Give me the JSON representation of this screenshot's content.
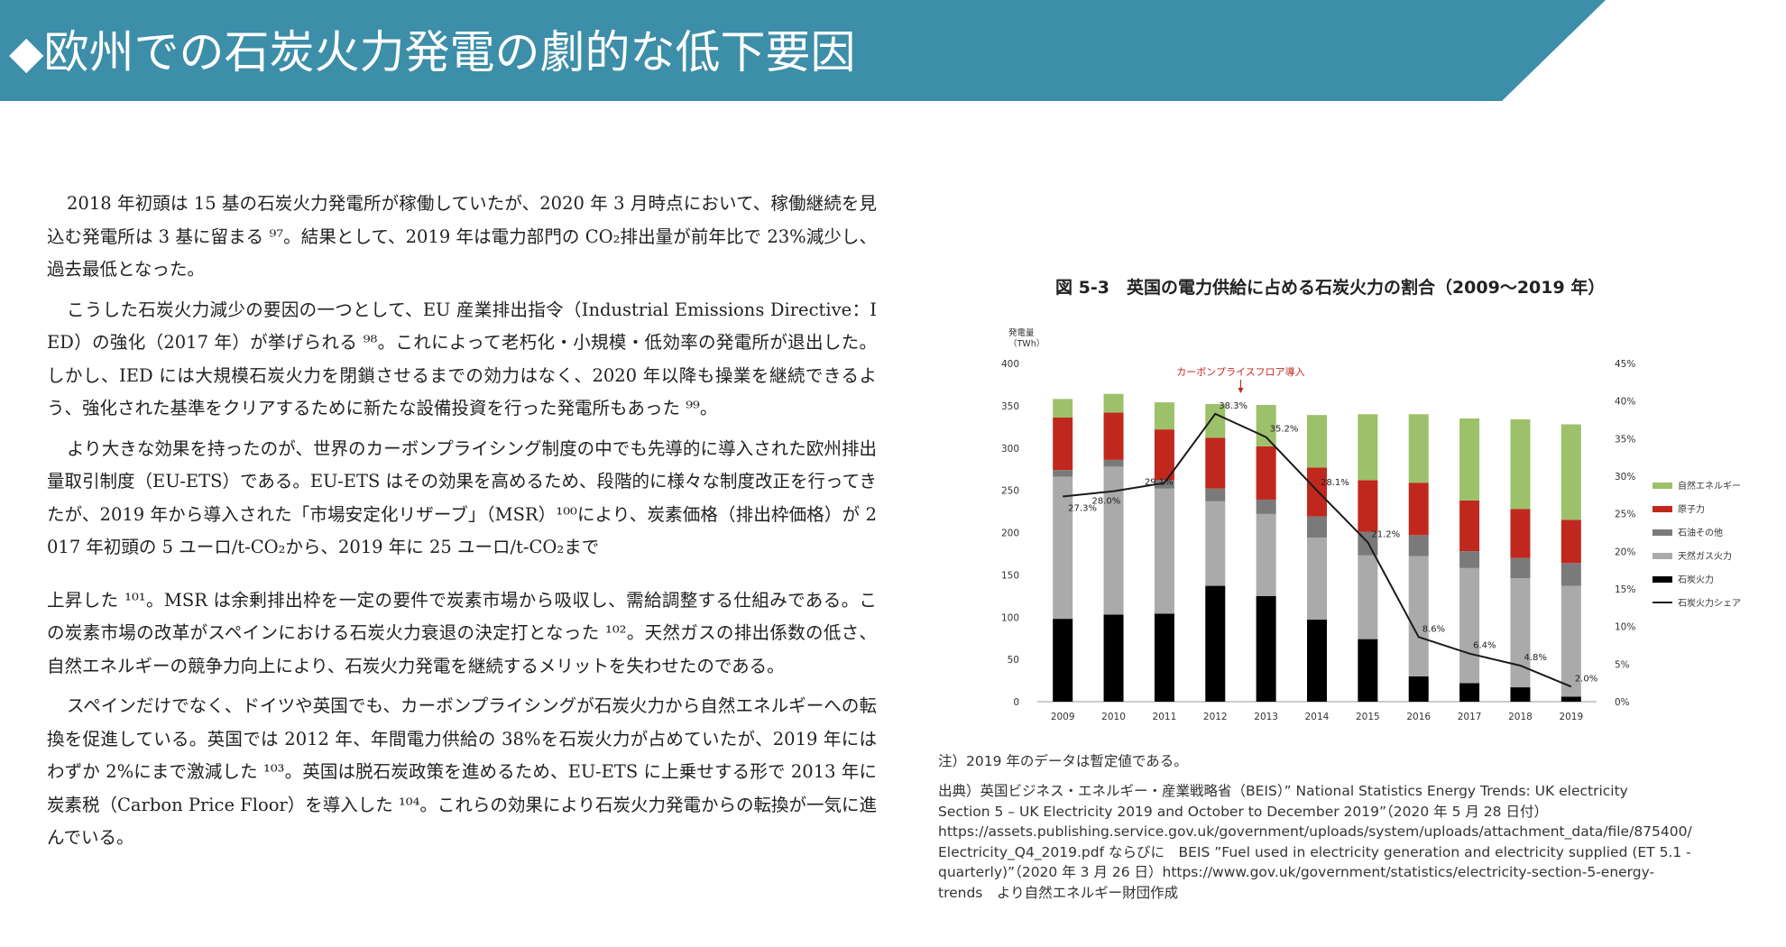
{
  "header": {
    "title": "◆欧州での石炭火力発電の劇的な低下要因",
    "color": "#3d8ea8"
  },
  "paragraphs": [
    "2018 年初頭は 15 基の石炭火力発電所が稼働していたが、2020 年 3 月時点において、稼働継続を見込む発電所は 3 基に留まる ⁹⁷。結果として、2019 年は電力部門の CO₂排出量が前年比で 23%減少し、過去最低となった。",
    "こうした石炭火力減少の要因の一つとして、EU 産業排出指令（Industrial Emissions Directive：IED）の強化（2017 年）が挙げられる ⁹⁸。これによって老朽化・小規模・低効率の発電所が退出した。しかし、IED には大規模石炭火力を閉鎖させるまでの効力はなく、2020 年以降も操業を継続できるよう、強化された基準をクリアするために新たな設備投資を行った発電所もあった ⁹⁹。",
    "より大きな効果を持ったのが、世界のカーボンプライシング制度の中でも先導的に導入された欧州排出量取引制度（EU-ETS）である。EU-ETS はその効果を高めるため、段階的に様々な制度改正を行ってきたが、2019 年から導入された「市場安定化リザーブ」（MSR）¹⁰⁰により、炭素価格（排出枠価格）が 2017 年初頭の 5 ユーロ/t-CO₂から、2019 年に 25 ユーロ/t-CO₂まで",
    "上昇した ¹⁰¹。MSR は余剰排出枠を一定の要件で炭素市場から吸収し、需給調整する仕組みである。この炭素市場の改革がスペインにおける石炭火力衰退の決定打となった ¹⁰²。天然ガスの排出係数の低さ、自然エネルギーの競争力向上により、石炭火力発電を継続するメリットを失わせたのである。",
    "スペインだけでなく、ドイツや英国でも、カーボンプライシングが石炭火力から自然エネルギーへの転換を促進している。英国では 2012 年、年間電力供給の 38%を石炭火力が占めていたが、2019 年にはわずか 2%にまで激減した ¹⁰³。英国は脱石炭政策を進めるため、EU-ETS に上乗せする形で 2013 年に炭素税（Carbon Price Floor）を導入した ¹⁰⁴。これらの効果により石炭火力発電からの転換が一気に進んでいる。"
  ],
  "chart_title": "図 5-3　英国の電力供給に占める石炭火力の割合（2009～2019 年）",
  "chart_data": {
    "type": "bar",
    "stacked": true,
    "categories": [
      "2009",
      "2010",
      "2011",
      "2012",
      "2013",
      "2014",
      "2015",
      "2016",
      "2017",
      "2018",
      "2019"
    ],
    "ylabel_left": "発電量（TWh）",
    "ylim_left": [
      0,
      400
    ],
    "yticks_left": [
      0,
      50,
      100,
      150,
      200,
      250,
      300,
      350,
      400
    ],
    "ylim_right": [
      0,
      45
    ],
    "yticks_right": [
      "0%",
      "5%",
      "10%",
      "15%",
      "20%",
      "25%",
      "30%",
      "35%",
      "40%",
      "45%"
    ],
    "series": [
      {
        "name": "石炭火力",
        "color": "#000000",
        "values": [
          98,
          103,
          104,
          137,
          125,
          97,
          74,
          30,
          22,
          17,
          6
        ]
      },
      {
        "name": "天然ガス火力",
        "color": "#aaaaaa",
        "values": [
          168,
          175,
          148,
          100,
          97,
          97,
          99,
          142,
          136,
          129,
          131
        ]
      },
      {
        "name": "石油その他",
        "color": "#7a7a7a",
        "values": [
          8,
          8,
          10,
          15,
          17,
          25,
          28,
          25,
          20,
          24,
          27
        ]
      },
      {
        "name": "原子力",
        "color": "#c0281e",
        "values": [
          62,
          56,
          60,
          60,
          63,
          58,
          61,
          62,
          60,
          58,
          51
        ]
      },
      {
        "name": "自然エネルギー",
        "color": "#9dc06a",
        "values": [
          22,
          22,
          32,
          40,
          49,
          62,
          78,
          81,
          97,
          106,
          113
        ]
      }
    ],
    "line": {
      "name": "石炭火力シェア",
      "color": "#1a1a1a",
      "values": [
        27.3,
        28.0,
        29.1,
        38.3,
        35.2,
        28.1,
        21.2,
        8.6,
        6.4,
        4.8,
        2.0
      ],
      "labels": [
        "27.3%",
        "28.0%",
        "29.1%",
        "38.3%",
        "35.2%",
        "28.1%",
        "21.2%",
        "8.6%",
        "6.4%",
        "4.8%",
        "2.0%"
      ]
    },
    "annotation": "カーボンプライスフロア導入",
    "legend_position": "right"
  },
  "note": "注）2019 年のデータは暫定値である。",
  "source_lines": [
    "出典）英国ビジネス・エネルギー・産業戦略省（BEIS）” National Statistics Energy Trends: UK electricity",
    "Section 5 – UK Electricity 2019 and October to December 2019”（2020 年 5 月 28 日付）",
    "https://assets.publishing.service.gov.uk/government/uploads/system/uploads/attachment_data/file/875400/",
    "Electricity_Q4_2019.pdf ならびに　BEIS ”Fuel used in electricity generation and electricity supplied (ET 5.1 -",
    "quarterly)”（2020 年 3 月 26 日）https://www.gov.uk/government/statistics/electricity-section-5-energy-",
    "trends　より自然エネルギー財団作成"
  ]
}
